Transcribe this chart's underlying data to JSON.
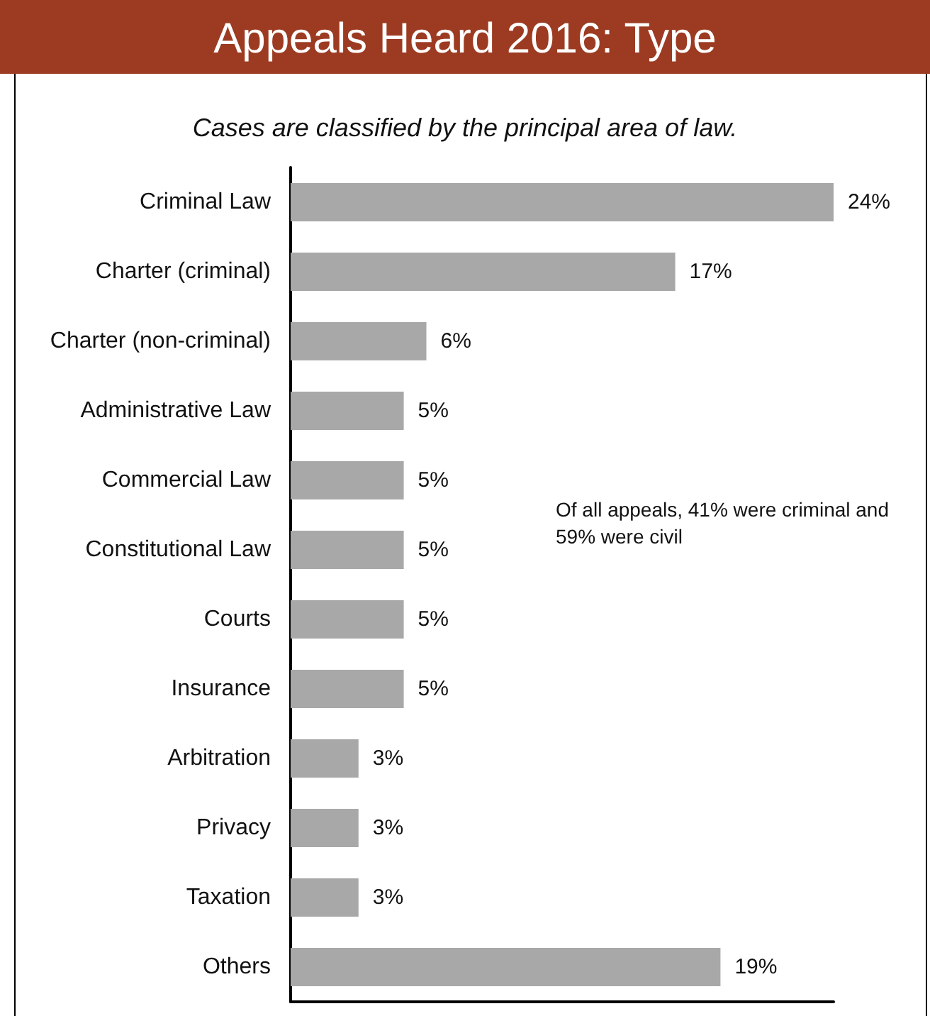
{
  "chart_data": {
    "type": "bar",
    "orientation": "horizontal",
    "title": "Appeals Heard 2016: Type",
    "subtitle": "Cases are classified by the principal area of law.",
    "categories": [
      "Criminal Law",
      "Charter (criminal)",
      "Charter (non-criminal)",
      "Administrative Law",
      "Commercial Law",
      "Constitutional Law",
      "Courts",
      "Insurance",
      "Arbitration",
      "Privacy",
      "Taxation",
      "Others"
    ],
    "values": [
      24,
      17,
      6,
      5,
      5,
      5,
      5,
      5,
      3,
      3,
      3,
      19
    ],
    "value_labels": [
      "24%",
      "17%",
      "6%",
      "5%",
      "5%",
      "5%",
      "5%",
      "5%",
      "3%",
      "3%",
      "3%",
      "19%"
    ],
    "color": "#a8a8a8",
    "tick_labels": "y",
    "annotations": [
      "Of all appeals, 41% were criminal and 59% were civil"
    ]
  }
}
